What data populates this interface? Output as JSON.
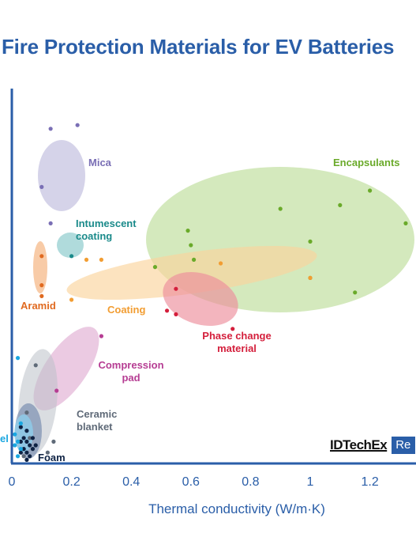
{
  "chart_data": {
    "type": "scatter",
    "title": "Fire Protection Materials for EV Batteries",
    "xlabel": "Thermal conductivity (W/m·K)",
    "ylabel": "",
    "xlim": [
      0,
      1.35
    ],
    "ylim": [
      0,
      1
    ],
    "x_ticks": [
      "0",
      "0.2",
      "0.4",
      "0.6",
      "0.8",
      "1",
      "1.2"
    ],
    "y_ticks": [],
    "series": [
      {
        "name": "Encapsulants",
        "label_lines": [
          "Encapsulants"
        ],
        "color": "#6aaa2a",
        "fill": "#b9dc95",
        "points": [
          [
            0.48,
            0.54
          ],
          [
            0.59,
            0.64
          ],
          [
            0.6,
            0.6
          ],
          [
            0.61,
            0.56
          ],
          [
            0.9,
            0.7
          ],
          [
            1.0,
            0.61
          ],
          [
            1.1,
            0.71
          ],
          [
            1.2,
            0.75
          ],
          [
            1.32,
            0.66
          ],
          [
            1.0,
            0.51
          ],
          [
            1.15,
            0.47
          ]
        ]
      },
      {
        "name": "Mica",
        "label_lines": [
          "Mica"
        ],
        "color": "#7a6fb5",
        "fill": "#c3c0e0",
        "points": [
          [
            0.13,
            0.92
          ],
          [
            0.22,
            0.93
          ],
          [
            0.13,
            0.66
          ],
          [
            0.1,
            0.76
          ]
        ]
      },
      {
        "name": "Intumescent coating",
        "label_lines": [
          "Intumescent",
          "coating"
        ],
        "color": "#1a8a8a",
        "fill": "#96cfd0",
        "points": [
          [
            0.2,
            0.57
          ]
        ]
      },
      {
        "name": "Aramid",
        "label_lines": [
          "Aramid"
        ],
        "color": "#e06a20",
        "fill": "#f6b98a",
        "points": [
          [
            0.1,
            0.57
          ],
          [
            0.1,
            0.49
          ],
          [
            0.1,
            0.46
          ]
        ]
      },
      {
        "name": "Coating",
        "label_lines": [
          "Coating"
        ],
        "color": "#f29d32",
        "fill": "#fbd49c",
        "points": [
          [
            0.7,
            0.55
          ],
          [
            1.0,
            0.51
          ],
          [
            0.2,
            0.45
          ],
          [
            0.25,
            0.56
          ],
          [
            0.3,
            0.56
          ]
        ]
      },
      {
        "name": "Phase change material",
        "label_lines": [
          "Phase change",
          "material"
        ],
        "color": "#d41f3c",
        "fill": "#ec8e9b",
        "points": [
          [
            0.55,
            0.48
          ],
          [
            0.52,
            0.42
          ],
          [
            0.55,
            0.41
          ],
          [
            0.74,
            0.37
          ]
        ]
      },
      {
        "name": "Compression pad",
        "label_lines": [
          "Compression",
          "pad"
        ],
        "color": "#b63d93",
        "fill": "#dda7cf",
        "points": [
          [
            0.3,
            0.35
          ],
          [
            0.15,
            0.2
          ]
        ]
      },
      {
        "name": "Ceramic blanket",
        "label_lines": [
          "Ceramic",
          "blanket"
        ],
        "color": "#5f6a78",
        "fill": "#bcc1c9",
        "points": [
          [
            0.08,
            0.27
          ],
          [
            0.05,
            0.14
          ],
          [
            0.06,
            0.07
          ],
          [
            0.14,
            0.06
          ],
          [
            0.12,
            0.03
          ],
          [
            0.04,
            0.02
          ]
        ]
      },
      {
        "name": "Foam",
        "label_lines": [
          "Foam"
        ],
        "color": "#0f2344",
        "fill": "#7a8fb0",
        "points": [
          [
            0.03,
            0.1
          ],
          [
            0.05,
            0.09
          ],
          [
            0.04,
            0.07
          ],
          [
            0.05,
            0.06
          ],
          [
            0.06,
            0.05
          ],
          [
            0.04,
            0.04
          ],
          [
            0.05,
            0.03
          ],
          [
            0.07,
            0.04
          ],
          [
            0.03,
            0.03
          ],
          [
            0.06,
            0.02
          ],
          [
            0.05,
            0.01
          ],
          [
            0.08,
            0.05
          ],
          [
            0.03,
            0.06
          ],
          [
            0.07,
            0.07
          ]
        ]
      },
      {
        "name": "Aerogel",
        "label_lines": [
          "el"
        ],
        "color": "#1aa7e0",
        "fill": "#8ccfee",
        "points": [
          [
            0.02,
            0.29
          ],
          [
            0.03,
            0.11
          ],
          [
            0.02,
            0.06
          ],
          [
            0.01,
            0.05
          ],
          [
            0.03,
            0.04
          ],
          [
            0.02,
            0.02
          ],
          [
            0.01,
            0.08
          ]
        ]
      }
    ]
  },
  "brand": {
    "name": "IDTechEx",
    "tag": "Re"
  }
}
